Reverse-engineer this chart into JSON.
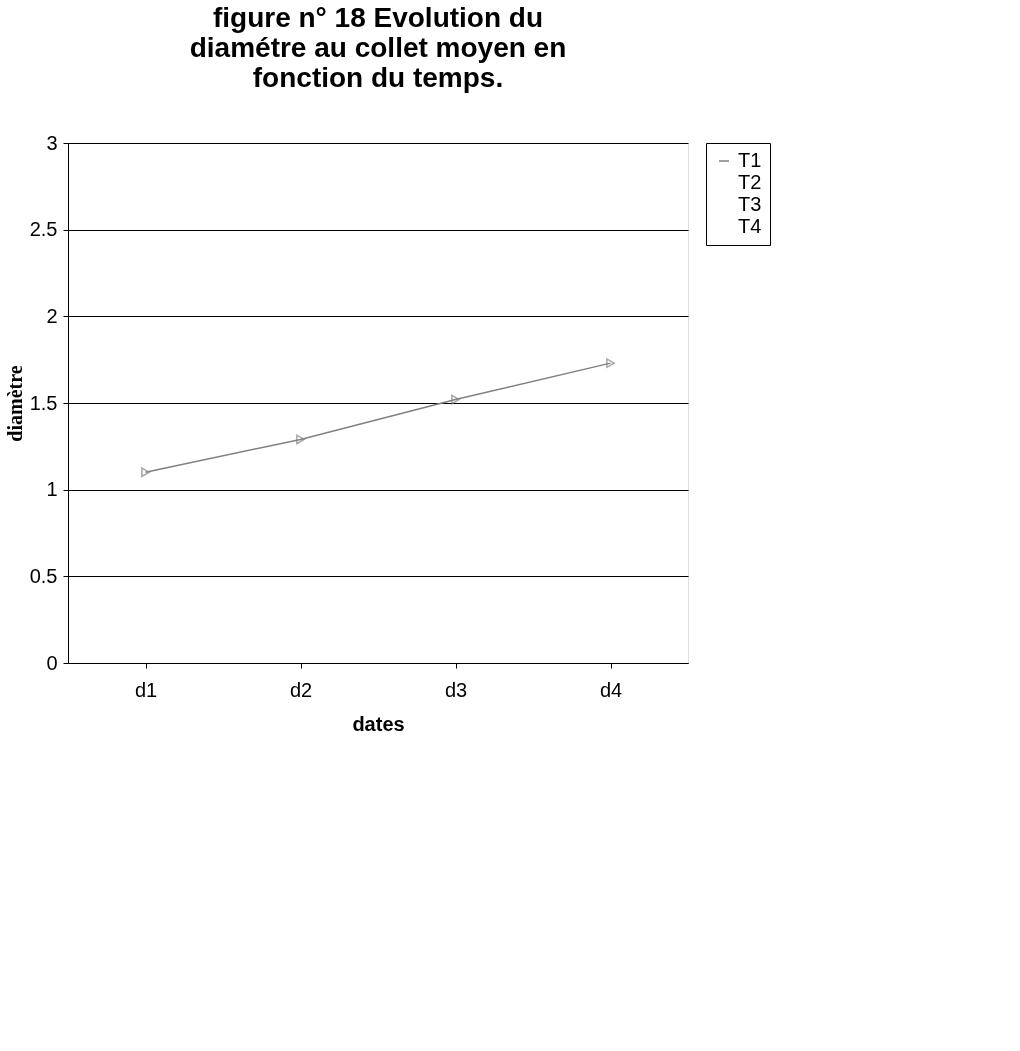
{
  "chart_data": {
    "type": "line",
    "title": "figure n° 18  Evolution du diamétre au collet moyen en fonction du temps.",
    "xlabel": "dates",
    "ylabel": "diamètre",
    "categories": [
      "d1",
      "d2",
      "d3",
      "d4"
    ],
    "series": [
      {
        "name": "T1",
        "color": "#808080",
        "values": [
          1.1,
          1.29,
          1.52,
          1.73
        ]
      },
      {
        "name": "T2",
        "values": [
          null,
          null,
          null,
          null
        ]
      },
      {
        "name": "T3",
        "values": [
          null,
          null,
          null,
          null
        ]
      },
      {
        "name": "T4",
        "values": [
          null,
          null,
          null,
          null
        ]
      }
    ],
    "ylim": [
      0,
      3
    ],
    "yticks": [
      0,
      0.5,
      1,
      1.5,
      2,
      2.5,
      3
    ],
    "grid": "y",
    "legend": "right",
    "marker": "triangle",
    "line_style": "solid"
  }
}
